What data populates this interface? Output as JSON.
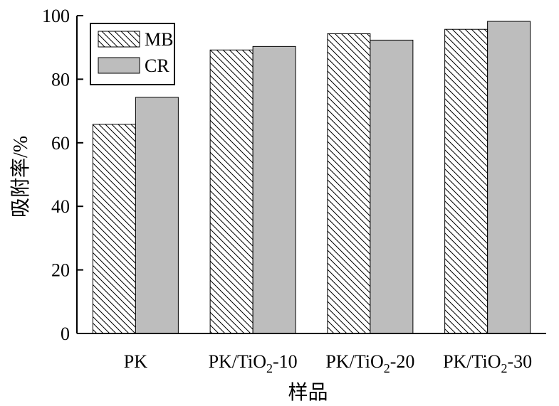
{
  "chart_data": {
    "type": "bar",
    "categories": [
      "PK",
      "PK/TiO2-10",
      "PK/TiO2-20",
      "PK/TiO2-30"
    ],
    "series": [
      {
        "name": "MB",
        "values": [
          65.8,
          89.2,
          94.3,
          95.7
        ],
        "fill": "hatch",
        "color": "#ffffff"
      },
      {
        "name": "CR",
        "values": [
          74.3,
          90.3,
          92.3,
          98.2
        ],
        "fill": "solid",
        "color": "#bdbdbd"
      }
    ],
    "xlabel": "样品",
    "ylabel": "吸附率/%",
    "ylim": [
      0,
      100
    ],
    "yticks": [
      0,
      20,
      40,
      60,
      80,
      100
    ],
    "grid": false,
    "legend": "top-left"
  }
}
